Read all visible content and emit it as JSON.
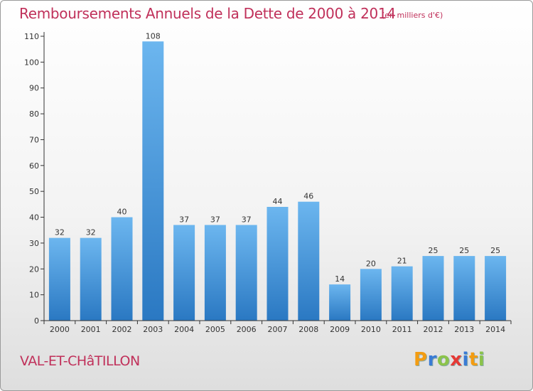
{
  "title": "Remboursements Annuels de la Dette de 2000 à 2014",
  "subtitle": "(en milliers d'€)",
  "city": "VAL-ET-CHâTILLON",
  "logo": {
    "text": "Proxiti",
    "letters": [
      {
        "ch": "P",
        "color": "#f39c12"
      },
      {
        "ch": "r",
        "color": "#3a7bd5"
      },
      {
        "ch": "o",
        "color": "#8bc34a"
      },
      {
        "ch": "x",
        "color": "#e53935"
      },
      {
        "ch": "i",
        "color": "#3a7bd5"
      },
      {
        "ch": "t",
        "color": "#f39c12"
      },
      {
        "ch": "i",
        "color": "#8bc34a"
      }
    ]
  },
  "colors": {
    "bar_light": "#6cb6ef",
    "bar_dark": "#2a78c2",
    "accent": "#c0305a"
  },
  "chart_data": {
    "type": "bar",
    "categories": [
      "2000",
      "2001",
      "2002",
      "2003",
      "2004",
      "2005",
      "2006",
      "2007",
      "2008",
      "2009",
      "2010",
      "2011",
      "2012",
      "2013",
      "2014"
    ],
    "values": [
      32,
      32,
      40,
      108,
      37,
      37,
      37,
      44,
      46,
      14,
      20,
      21,
      25,
      25,
      25
    ],
    "ylim": [
      0,
      110
    ],
    "yticks": [
      0,
      10,
      20,
      30,
      40,
      50,
      60,
      70,
      80,
      90,
      100,
      110
    ],
    "grid": false,
    "data_labels": true
  }
}
